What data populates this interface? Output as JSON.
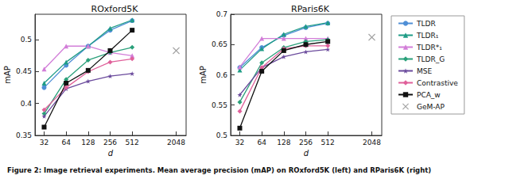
{
  "caption": "Figure 2: Image retrieval experiments. Mean average precision (mAP) on ROxford5K (left) and RParis6K (right)",
  "chart_data": [
    {
      "type": "line",
      "title": "ROxford5K",
      "x_label": "d",
      "y_label": "mAP",
      "log": "x",
      "x": [
        32,
        64,
        128,
        256,
        512,
        2048
      ],
      "xlim": [
        24,
        2800
      ],
      "xticks": [
        32,
        64,
        128,
        256,
        512,
        2048
      ],
      "ylim": [
        0.35,
        0.54
      ],
      "yticks": [
        0.35,
        0.4,
        0.45,
        0.5
      ],
      "legend": "right",
      "series": [
        {
          "name": "TLDR",
          "color": "#4f8fd6",
          "marker": "circle",
          "values": [
            0.425,
            0.46,
            0.49,
            0.515,
            0.53,
            null
          ]
        },
        {
          "name": "TLDR₁",
          "color": "#1f9c86",
          "marker": "triangle",
          "values": [
            0.432,
            0.465,
            0.49,
            0.518,
            0.531,
            null
          ]
        },
        {
          "name": "TLDR*₁",
          "color": "#d27ed8",
          "marker": "triangle",
          "values": [
            0.454,
            0.49,
            0.49,
            0.48,
            0.475,
            null
          ]
        },
        {
          "name": "TLDR_G",
          "color": "#2aa07a",
          "marker": "diamond",
          "values": [
            0.384,
            0.438,
            0.468,
            0.48,
            0.488,
            null
          ]
        },
        {
          "name": "MSE",
          "color": "#6a4a9c",
          "marker": "star",
          "values": [
            0.38,
            0.423,
            0.435,
            0.443,
            0.447,
            null
          ]
        },
        {
          "name": "Contrastive",
          "color": "#e0609a",
          "marker": "diamond",
          "values": [
            0.39,
            0.425,
            0.45,
            0.465,
            0.47,
            null
          ]
        },
        {
          "name": "PCA_w",
          "color": "#111111",
          "marker": "square",
          "values": [
            0.363,
            0.432,
            0.452,
            0.483,
            0.515,
            null
          ]
        },
        {
          "name": "GeM-AP",
          "color": "#8c8c8c",
          "marker": "cross",
          "type": "scatter",
          "values": [
            null,
            null,
            null,
            null,
            null,
            0.483
          ]
        }
      ]
    },
    {
      "type": "line",
      "title": "RParis6K",
      "x_label": "d",
      "y_label": "mAP",
      "log": "x",
      "x": [
        32,
        64,
        128,
        256,
        512,
        2048
      ],
      "xlim": [
        24,
        2800
      ],
      "xticks": [
        32,
        64,
        128,
        256,
        512,
        2048
      ],
      "ylim": [
        0.5,
        0.7
      ],
      "yticks": [
        0.5,
        0.55,
        0.6,
        0.65,
        0.7
      ],
      "series": [
        {
          "name": "TLDR",
          "color": "#4f8fd6",
          "marker": "circle",
          "values": [
            0.612,
            0.645,
            0.665,
            0.678,
            0.685,
            null
          ]
        },
        {
          "name": "TLDR₁",
          "color": "#1f9c86",
          "marker": "triangle",
          "values": [
            0.608,
            0.643,
            0.667,
            0.68,
            0.686,
            null
          ]
        },
        {
          "name": "TLDR*₁",
          "color": "#d27ed8",
          "marker": "triangle",
          "values": [
            0.613,
            0.66,
            0.66,
            0.66,
            0.66,
            null
          ]
        },
        {
          "name": "TLDR_G",
          "color": "#2aa07a",
          "marker": "diamond",
          "values": [
            0.555,
            0.62,
            0.645,
            0.655,
            0.658,
            null
          ]
        },
        {
          "name": "MSE",
          "color": "#6a4a9c",
          "marker": "star",
          "values": [
            0.567,
            0.612,
            0.63,
            0.638,
            0.642,
            null
          ]
        },
        {
          "name": "Contrastive",
          "color": "#e0609a",
          "marker": "diamond",
          "values": [
            0.54,
            0.612,
            0.643,
            0.648,
            0.648,
            null
          ]
        },
        {
          "name": "PCA_w",
          "color": "#111111",
          "marker": "square",
          "values": [
            0.512,
            0.606,
            0.64,
            0.65,
            0.655,
            null
          ]
        },
        {
          "name": "GeM-AP",
          "color": "#8c8c8c",
          "marker": "cross",
          "type": "scatter",
          "values": [
            null,
            null,
            null,
            null,
            null,
            0.662
          ]
        }
      ]
    }
  ]
}
